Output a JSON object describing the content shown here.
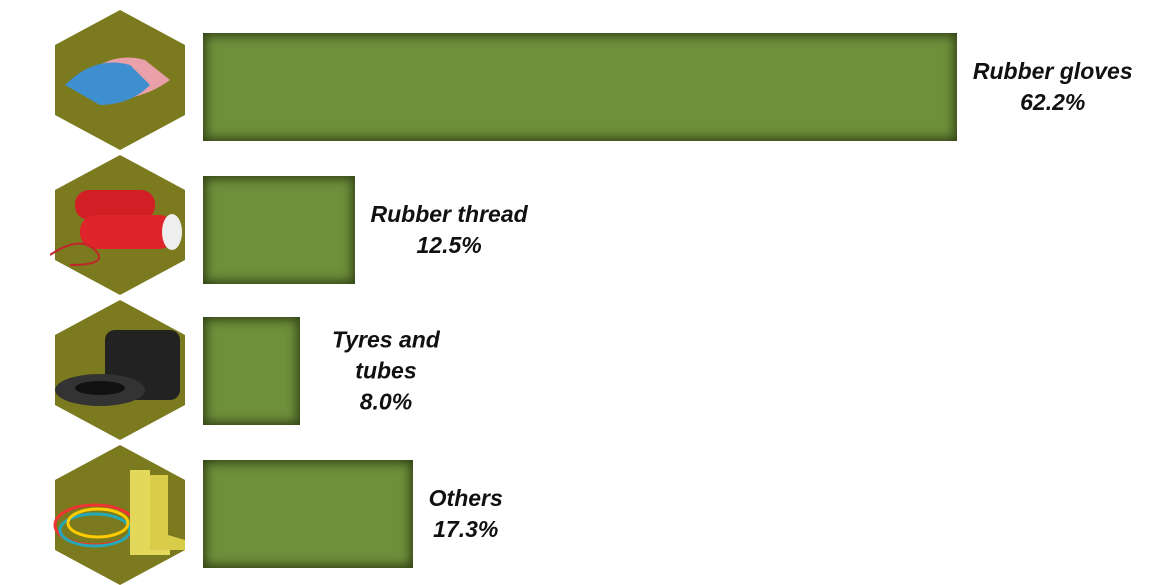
{
  "chart_data": {
    "type": "bar",
    "orientation": "horizontal",
    "categories": [
      "Rubber gloves",
      "Rubber thread",
      "Tyres and tubes",
      "Others"
    ],
    "values": [
      62.2,
      12.5,
      8.0,
      17.3
    ],
    "value_labels": [
      "62.2%",
      "12.5%",
      "8.0%",
      "17.3%"
    ],
    "color": "#6e8f3b"
  }
}
